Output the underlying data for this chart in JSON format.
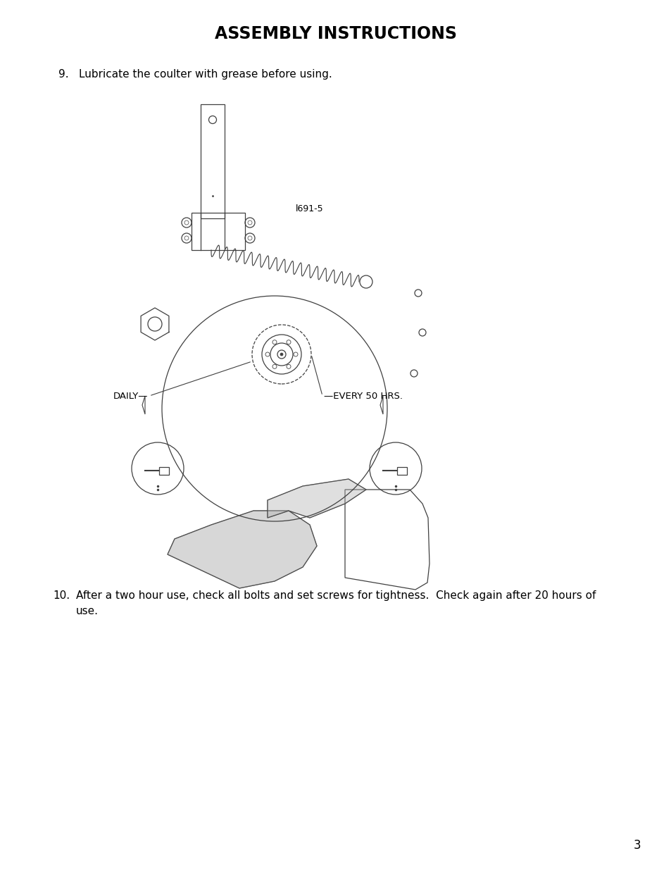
{
  "title": "ASSEMBLY INSTRUCTIONS",
  "title_fontsize": 17,
  "background_color": "#ffffff",
  "text_color": "#000000",
  "item9_number": "9.",
  "item9_text": "Lubricate the coulter with grease before using.",
  "item9_fontsize": 11,
  "item10_number": "10.",
  "item10_line1": "After a two hour use, check all bolts and set screws for tightness.  Check again after 20 hours of",
  "item10_line2": "use.",
  "item10_fontsize": 11,
  "page_number": "3",
  "page_number_fontsize": 12,
  "diagram_label": "l691-5",
  "daily_label": "DAILY",
  "every50_label": "EVERY 50 HRS.",
  "diagram_label_fontsize": 9,
  "callout_fontsize": 9.5
}
